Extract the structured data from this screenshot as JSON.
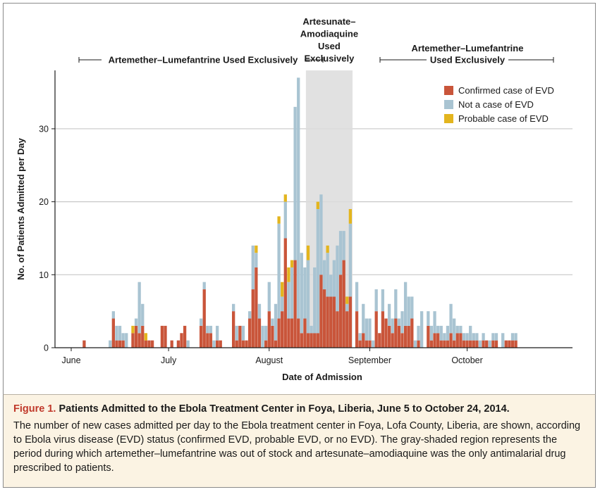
{
  "chart_data": {
    "type": "bar",
    "stacked": true,
    "xlabel": "Date of Admission",
    "ylabel": "No. of Patients Admitted per Day",
    "ylim": [
      0,
      38
    ],
    "yticks": [
      0,
      10,
      20,
      30
    ],
    "grid": true,
    "x_start_date": "June 5",
    "xticks": [
      {
        "label": "June",
        "day": 1
      },
      {
        "label": "July",
        "day": 31
      },
      {
        "label": "August",
        "day": 62
      },
      {
        "label": "September",
        "day": 93
      },
      {
        "label": "October",
        "day": 123
      }
    ],
    "legend_position": "top-right",
    "series": [
      {
        "name": "Confirmed case of EVD",
        "color": "#c9553a",
        "points": [
          [
            5,
            1
          ],
          [
            14,
            4
          ],
          [
            15,
            1
          ],
          [
            16,
            1
          ],
          [
            17,
            1
          ],
          [
            20,
            2
          ],
          [
            21,
            3
          ],
          [
            22,
            2
          ],
          [
            23,
            3
          ],
          [
            24,
            1
          ],
          [
            25,
            1
          ],
          [
            26,
            1
          ],
          [
            29,
            3
          ],
          [
            30,
            3
          ],
          [
            32,
            1
          ],
          [
            34,
            1
          ],
          [
            35,
            2
          ],
          [
            36,
            3
          ],
          [
            41,
            3
          ],
          [
            42,
            8
          ],
          [
            43,
            2
          ],
          [
            44,
            2
          ],
          [
            46,
            1
          ],
          [
            47,
            1
          ],
          [
            51,
            5
          ],
          [
            52,
            1
          ],
          [
            53,
            3
          ],
          [
            54,
            1
          ],
          [
            55,
            1
          ],
          [
            56,
            4
          ],
          [
            57,
            8
          ],
          [
            58,
            11
          ],
          [
            59,
            4
          ],
          [
            61,
            1
          ],
          [
            62,
            5
          ],
          [
            63,
            3
          ],
          [
            64,
            1
          ],
          [
            65,
            4
          ],
          [
            66,
            5
          ],
          [
            67,
            15
          ],
          [
            68,
            4
          ],
          [
            69,
            4
          ],
          [
            70,
            12
          ],
          [
            71,
            4
          ],
          [
            72,
            2
          ],
          [
            73,
            4
          ],
          [
            74,
            2
          ],
          [
            75,
            2
          ],
          [
            76,
            2
          ],
          [
            77,
            2
          ],
          [
            78,
            10
          ],
          [
            79,
            8
          ],
          [
            80,
            7
          ],
          [
            81,
            7
          ],
          [
            82,
            7
          ],
          [
            83,
            5
          ],
          [
            84,
            10
          ],
          [
            85,
            12
          ],
          [
            86,
            5
          ],
          [
            87,
            7
          ],
          [
            89,
            5
          ],
          [
            90,
            1
          ],
          [
            91,
            2
          ],
          [
            92,
            1
          ],
          [
            93,
            1
          ],
          [
            95,
            5
          ],
          [
            96,
            2
          ],
          [
            97,
            5
          ],
          [
            98,
            4
          ],
          [
            99,
            3
          ],
          [
            100,
            2
          ],
          [
            101,
            4
          ],
          [
            102,
            3
          ],
          [
            103,
            2
          ],
          [
            104,
            3
          ],
          [
            105,
            3
          ],
          [
            106,
            4
          ],
          [
            108,
            1
          ],
          [
            111,
            3
          ],
          [
            112,
            1
          ],
          [
            113,
            2
          ],
          [
            114,
            2
          ],
          [
            115,
            1
          ],
          [
            116,
            1
          ],
          [
            117,
            1
          ],
          [
            118,
            2
          ],
          [
            119,
            1
          ],
          [
            120,
            2
          ],
          [
            121,
            2
          ],
          [
            122,
            1
          ],
          [
            123,
            1
          ],
          [
            124,
            1
          ],
          [
            125,
            1
          ],
          [
            126,
            1
          ],
          [
            128,
            1
          ],
          [
            129,
            1
          ],
          [
            131,
            1
          ],
          [
            132,
            1
          ],
          [
            135,
            1
          ],
          [
            136,
            1
          ],
          [
            137,
            1
          ],
          [
            138,
            1
          ]
        ]
      },
      {
        "name": "Not a case of EVD",
        "color": "#a9c4d2",
        "points": [
          [
            13,
            1
          ],
          [
            14,
            1
          ],
          [
            15,
            2
          ],
          [
            16,
            2
          ],
          [
            17,
            1
          ],
          [
            18,
            2
          ],
          [
            21,
            1
          ],
          [
            22,
            7
          ],
          [
            23,
            3
          ],
          [
            35,
            0
          ],
          [
            37,
            1
          ],
          [
            41,
            1
          ],
          [
            42,
            1
          ],
          [
            43,
            1
          ],
          [
            44,
            1
          ],
          [
            45,
            1
          ],
          [
            46,
            2
          ],
          [
            51,
            1
          ],
          [
            52,
            2
          ],
          [
            54,
            2
          ],
          [
            56,
            1
          ],
          [
            57,
            6
          ],
          [
            58,
            2
          ],
          [
            59,
            2
          ],
          [
            60,
            3
          ],
          [
            61,
            2
          ],
          [
            62,
            4
          ],
          [
            63,
            1
          ],
          [
            64,
            5
          ],
          [
            65,
            13
          ],
          [
            66,
            2
          ],
          [
            67,
            5
          ],
          [
            68,
            5
          ],
          [
            69,
            7
          ],
          [
            70,
            21
          ],
          [
            71,
            33
          ],
          [
            72,
            11
          ],
          [
            73,
            7
          ],
          [
            74,
            10
          ],
          [
            75,
            1
          ],
          [
            76,
            9
          ],
          [
            77,
            17
          ],
          [
            78,
            11
          ],
          [
            79,
            4
          ],
          [
            80,
            6
          ],
          [
            81,
            3
          ],
          [
            82,
            5
          ],
          [
            83,
            9
          ],
          [
            84,
            6
          ],
          [
            85,
            4
          ],
          [
            86,
            1
          ],
          [
            87,
            10
          ],
          [
            89,
            4
          ],
          [
            90,
            1
          ],
          [
            91,
            4
          ],
          [
            92,
            3
          ],
          [
            93,
            3
          ],
          [
            94,
            1
          ],
          [
            95,
            3
          ],
          [
            97,
            3
          ],
          [
            99,
            3
          ],
          [
            100,
            2
          ],
          [
            101,
            4
          ],
          [
            102,
            1
          ],
          [
            103,
            3
          ],
          [
            104,
            6
          ],
          [
            105,
            4
          ],
          [
            106,
            3
          ],
          [
            107,
            1
          ],
          [
            108,
            2
          ],
          [
            109,
            5
          ],
          [
            111,
            2
          ],
          [
            112,
            2
          ],
          [
            113,
            3
          ],
          [
            114,
            1
          ],
          [
            115,
            2
          ],
          [
            116,
            1
          ],
          [
            117,
            2
          ],
          [
            118,
            4
          ],
          [
            119,
            3
          ],
          [
            120,
            1
          ],
          [
            121,
            1
          ],
          [
            122,
            1
          ],
          [
            123,
            1
          ],
          [
            124,
            2
          ],
          [
            125,
            1
          ],
          [
            126,
            1
          ],
          [
            127,
            1
          ],
          [
            128,
            1
          ],
          [
            130,
            1
          ],
          [
            131,
            1
          ],
          [
            132,
            1
          ],
          [
            134,
            2
          ],
          [
            137,
            1
          ],
          [
            138,
            1
          ]
        ]
      },
      {
        "name": "Probable case of EVD",
        "color": "#e3b51e",
        "points": [
          [
            20,
            1
          ],
          [
            24,
            1
          ],
          [
            25,
            0
          ],
          [
            57,
            0
          ],
          [
            58,
            1
          ],
          [
            65,
            1
          ],
          [
            66,
            2
          ],
          [
            67,
            1
          ],
          [
            68,
            2
          ],
          [
            69,
            1
          ],
          [
            74,
            2
          ],
          [
            77,
            1
          ],
          [
            80,
            1
          ],
          [
            86,
            1
          ],
          [
            87,
            2
          ]
        ]
      }
    ],
    "annotations": [
      {
        "text": "Artemether–Lumefantrine Used Exclusively",
        "from_day": 2,
        "to_day": 73
      },
      {
        "text": "Artesunate–Amodiaquine Used Exclusively",
        "from_day": 74,
        "to_day": 87,
        "shaded": true,
        "lines": [
          "Artesunate–",
          "Amodiaquine",
          "Used",
          "Exclusively"
        ]
      },
      {
        "text": "Artemether–Lumefantrine Used Exclusively",
        "from_day": 88,
        "to_day": 141,
        "lines": [
          "Artemether–Lumefantrine",
          "Used Exclusively"
        ]
      }
    ]
  },
  "caption": {
    "figure_label": "Figure 1.",
    "title": "Patients Admitted to the Ebola Treatment Center in Foya, Liberia, June 5 to October 24, 2014.",
    "body": "The number of new cases admitted per day to the Ebola treatment center in Foya, Lofa County, Liberia, are shown, according to Ebola virus disease (EVD) status (confirmed EVD, probable EVD, or no EVD). The gray-shaded region represents the period during which artemether–lumefantrine was out of stock and artesunate–amodiaquine was the only antimalarial drug prescribed to patients."
  }
}
